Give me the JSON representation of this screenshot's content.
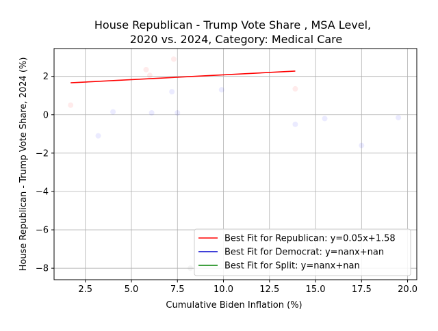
{
  "chart_data": {
    "type": "scatter",
    "title_line1": "House Republican - Trump Vote Share , MSA Level,",
    "title_line2": "2020 vs. 2024, Category: Medical Care",
    "xlabel": "Cumulative Biden Inflation (%)",
    "ylabel": "House Republican - Trump Vote Share, 2024 (%)",
    "xlim": [
      0.8,
      20.5
    ],
    "ylim": [
      -8.6,
      3.45
    ],
    "x_ticks": [
      2.5,
      5.0,
      7.5,
      10.0,
      12.5,
      15.0,
      17.5,
      20.0
    ],
    "x_tick_labels": [
      "2.5",
      "5.0",
      "7.5",
      "10.0",
      "12.5",
      "15.0",
      "17.5",
      "20.0"
    ],
    "y_ticks": [
      2,
      0,
      -2,
      -4,
      -6,
      -8
    ],
    "y_tick_labels": [
      "2",
      "0",
      "−2",
      "−4",
      "−6",
      "−8"
    ],
    "grid": true,
    "legend_position": "lower-right",
    "legend": [
      {
        "label": "Best Fit for Republican: y=0.05x+1.58",
        "color": "#ff0000"
      },
      {
        "label": "Best Fit for Democrat: y=nanx+nan",
        "color": "#0000cc"
      },
      {
        "label": "Best Fit for Split: y=nanx+nan",
        "color": "#008000"
      }
    ],
    "series": [
      {
        "name": "Republican",
        "color": "#ff0000",
        "points": [
          {
            "x": 1.7,
            "y": 0.5
          },
          {
            "x": 5.8,
            "y": 2.35
          },
          {
            "x": 6.0,
            "y": 2.05
          },
          {
            "x": 7.3,
            "y": 2.9
          },
          {
            "x": 13.9,
            "y": 1.35
          }
        ]
      },
      {
        "name": "Democrat",
        "color": "#0000ff",
        "points": [
          {
            "x": 3.2,
            "y": -1.1
          },
          {
            "x": 4.0,
            "y": 0.15
          },
          {
            "x": 6.1,
            "y": 0.1
          },
          {
            "x": 7.2,
            "y": 1.2
          },
          {
            "x": 7.5,
            "y": 0.1
          },
          {
            "x": 9.9,
            "y": 1.3
          },
          {
            "x": 13.9,
            "y": -0.5
          },
          {
            "x": 15.5,
            "y": -0.2
          },
          {
            "x": 17.5,
            "y": -1.6
          },
          {
            "x": 19.5,
            "y": -0.15
          }
        ]
      },
      {
        "name": "Split",
        "color": "#808080",
        "points": [
          {
            "x": 8.2,
            "y": -8.0
          }
        ]
      }
    ],
    "fit_line": {
      "name": "Republican",
      "color": "#ff0000",
      "x_start": 1.7,
      "x_end": 13.9,
      "slope": 0.05,
      "intercept": 1.58
    }
  }
}
